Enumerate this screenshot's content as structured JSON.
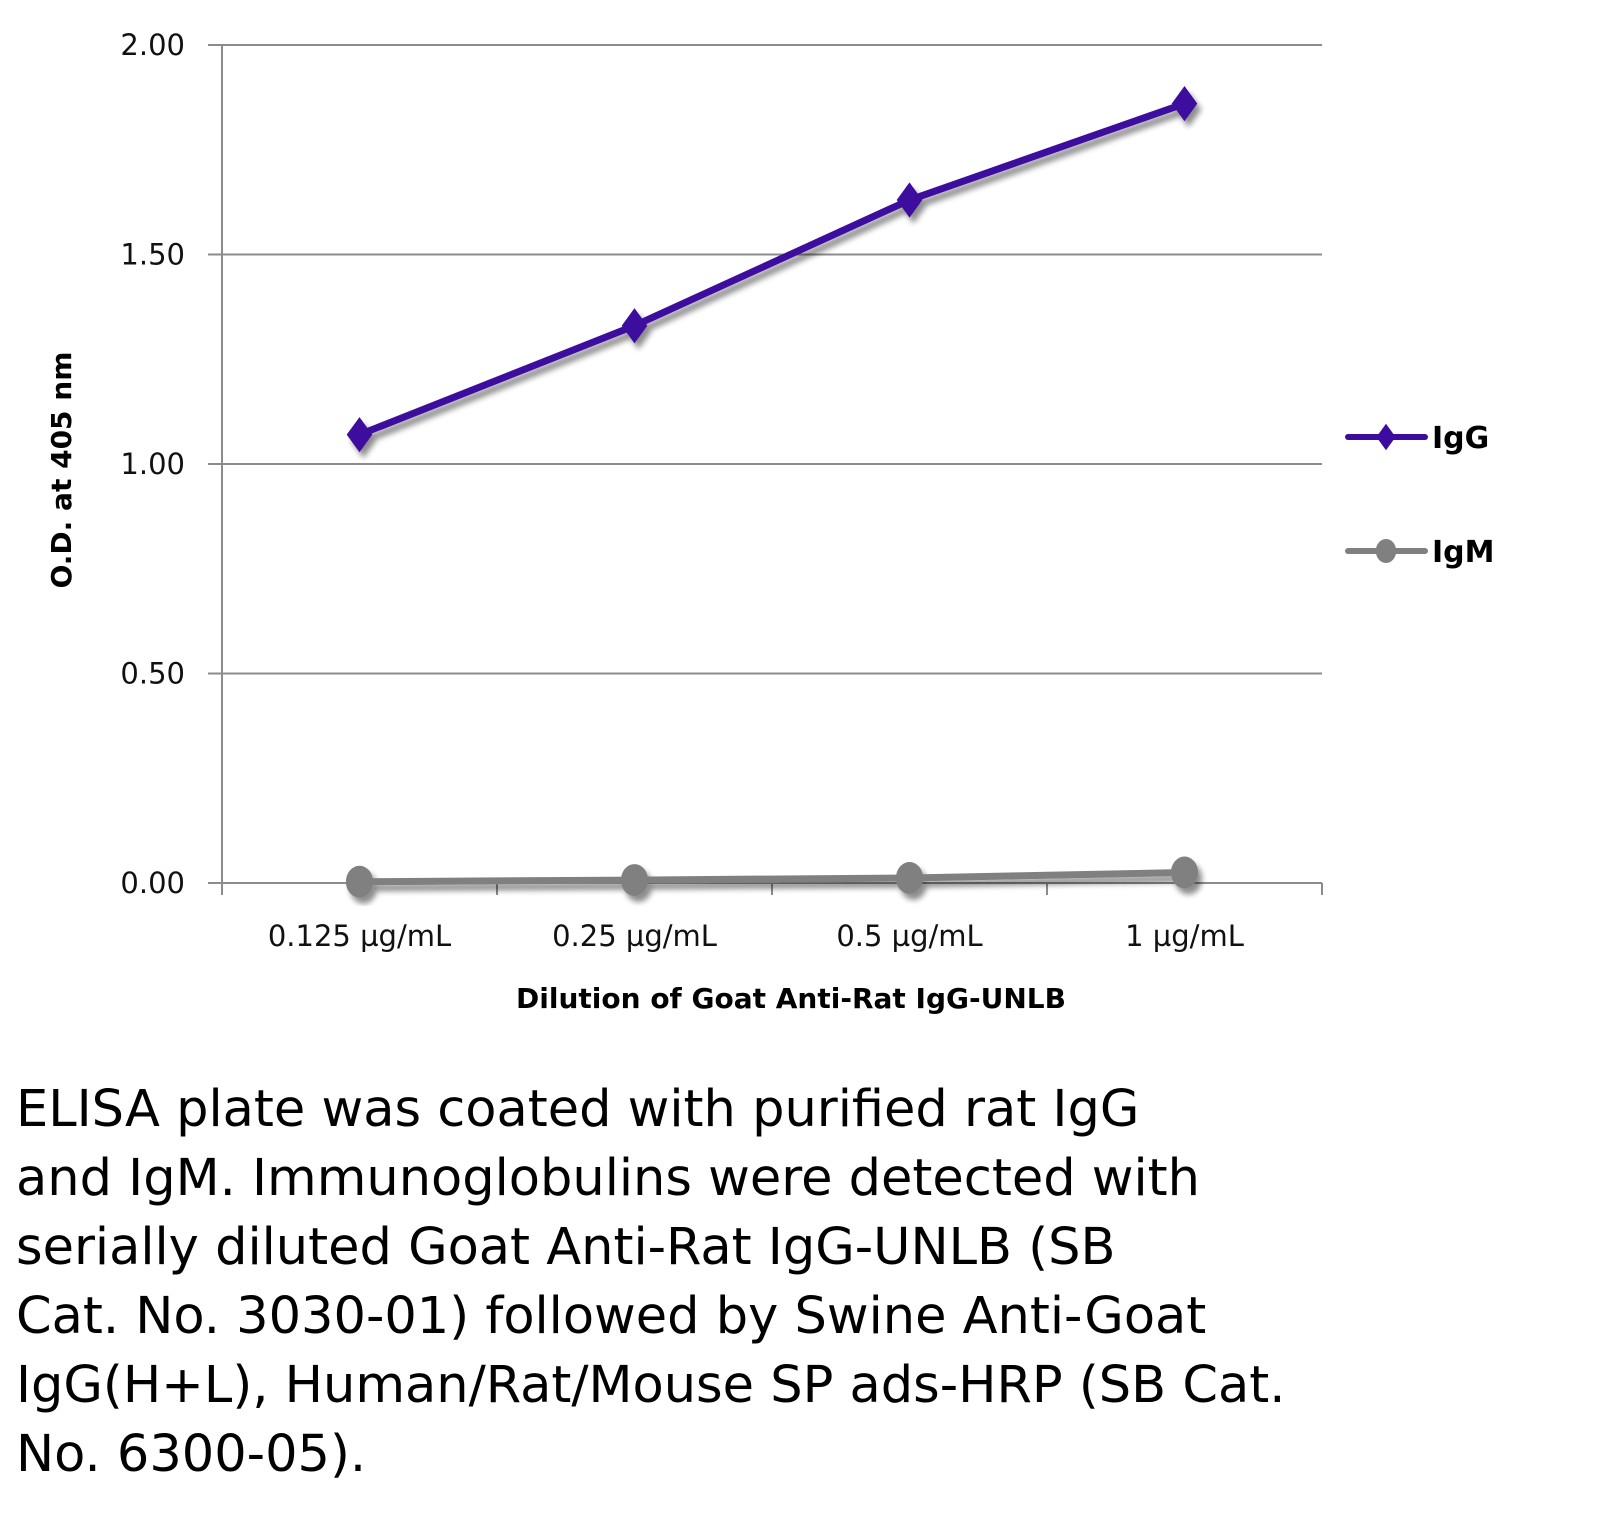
{
  "chart_data": {
    "type": "line",
    "title": "",
    "xlabel": "Dilution of Goat Anti-Rat IgG-UNLB",
    "ylabel": "O.D. at 405 nm",
    "categories": [
      "0.125 µg/mL",
      "0.25 µg/mL",
      "0.5 µg/mL",
      "1 µg/mL"
    ],
    "ylim": [
      0,
      2
    ],
    "yticks": [
      "0.00",
      "0.50",
      "1.00",
      "1.50",
      "2.00"
    ],
    "ytick_values": [
      0,
      0.5,
      1.0,
      1.5,
      2.0
    ],
    "grid": true,
    "legend_position": "right",
    "series": [
      {
        "name": "IgG",
        "values": [
          1.07,
          1.33,
          1.63,
          1.86
        ],
        "color": "#3d0c9e",
        "marker": "diamond"
      },
      {
        "name": "IgM",
        "values": [
          0.003,
          0.007,
          0.012,
          0.025
        ],
        "color": "#808080",
        "marker": "circle"
      }
    ]
  },
  "caption_lines": [
    "ELISA plate was coated with purified rat IgG",
    "and IgM.  Immunoglobulins were detected with",
    "serially diluted Goat Anti-Rat IgG-UNLB (SB",
    "Cat. No. 3030-01) followed by Swine Anti-Goat",
    "IgG(H+L), Human/Rat/Mouse SP ads-HRP (SB Cat.",
    "No. 6300-05)."
  ]
}
